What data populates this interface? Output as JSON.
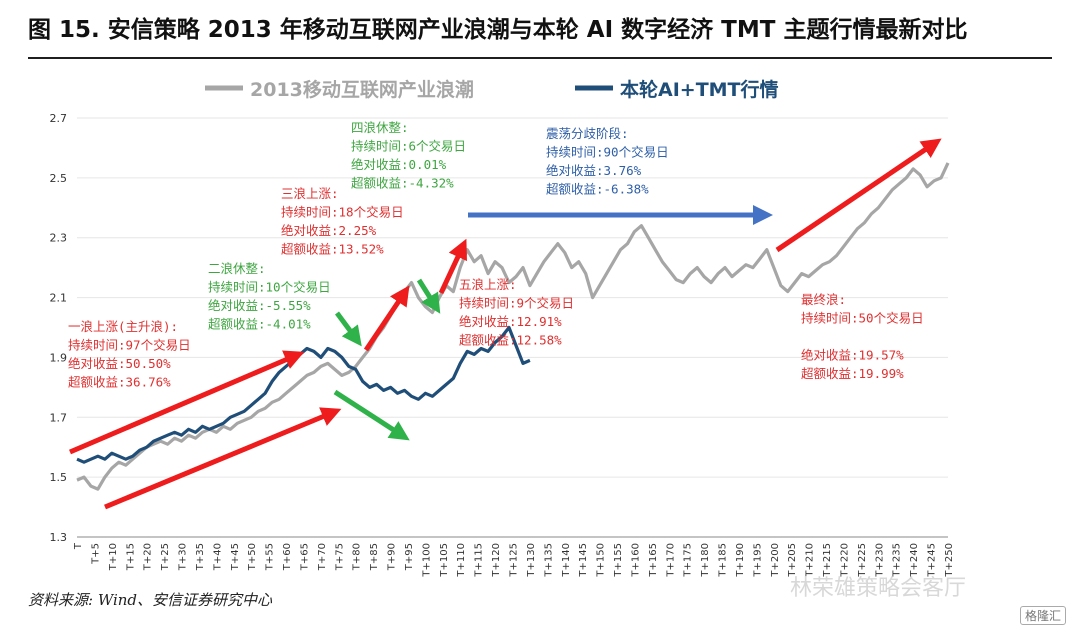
{
  "figure_title": "图 15. 安信策略 2013 年移动互联网产业浪潮与本轮 AI 数字经济 TMT 主题行情最新对比",
  "source_note": "资料来源: Wind、安信证券研究中心",
  "watermark": "林荣雄策略会客厅",
  "brand": "格隆汇",
  "colors": {
    "gray_series": "#a6a6a6",
    "blue_series": "#1f4e79",
    "green_text": "#3ea640",
    "red_text": "#e03030",
    "blue_text": "#2e5fa8",
    "red_arrow": "#ee1c1c",
    "green_arrow": "#2fb24a",
    "blue_arrow": "#4472c4"
  },
  "chart_data": {
    "type": "line",
    "legend": [
      "2013移动互联网产业浪潮",
      "本轮AI+TMT行情"
    ],
    "legend_position": "top",
    "ylim": [
      1.3,
      2.7
    ],
    "y_ticks": [
      "1.3",
      "1.5",
      "1.7",
      "1.9",
      "2.1",
      "2.3",
      "2.5",
      "2.7"
    ],
    "x_ticks": [
      "T",
      "T+5",
      "T+10",
      "T+15",
      "T+20",
      "T+25",
      "T+30",
      "T+35",
      "T+40",
      "T+45",
      "T+50",
      "T+55",
      "T+60",
      "T+65",
      "T+70",
      "T+75",
      "T+80",
      "T+85",
      "T+90",
      "T+95",
      "T+100",
      "T+105",
      "T+110",
      "T+115",
      "T+120",
      "T+125",
      "T+130",
      "T+135",
      "T+140",
      "T+145",
      "T+150",
      "T+155",
      "T+160",
      "T+165",
      "T+170",
      "T+175",
      "T+180",
      "T+185",
      "T+190",
      "T+195",
      "T+200",
      "T+205",
      "T+210",
      "T+215",
      "T+220",
      "T+225",
      "T+230",
      "T+235",
      "T+240",
      "T+245",
      "T+250"
    ],
    "grid": true,
    "series": [
      {
        "name": "2013移动互联网产业浪潮",
        "points": [
          [
            0,
            1.49
          ],
          [
            2,
            1.5
          ],
          [
            4,
            1.47
          ],
          [
            6,
            1.46
          ],
          [
            8,
            1.5
          ],
          [
            10,
            1.53
          ],
          [
            12,
            1.55
          ],
          [
            14,
            1.54
          ],
          [
            16,
            1.56
          ],
          [
            18,
            1.58
          ],
          [
            20,
            1.6
          ],
          [
            22,
            1.61
          ],
          [
            24,
            1.62
          ],
          [
            26,
            1.61
          ],
          [
            28,
            1.63
          ],
          [
            30,
            1.62
          ],
          [
            32,
            1.64
          ],
          [
            34,
            1.63
          ],
          [
            36,
            1.65
          ],
          [
            38,
            1.66
          ],
          [
            40,
            1.65
          ],
          [
            42,
            1.67
          ],
          [
            44,
            1.66
          ],
          [
            46,
            1.68
          ],
          [
            48,
            1.69
          ],
          [
            50,
            1.7
          ],
          [
            52,
            1.72
          ],
          [
            54,
            1.73
          ],
          [
            56,
            1.75
          ],
          [
            58,
            1.76
          ],
          [
            60,
            1.78
          ],
          [
            62,
            1.8
          ],
          [
            64,
            1.82
          ],
          [
            66,
            1.84
          ],
          [
            68,
            1.85
          ],
          [
            70,
            1.87
          ],
          [
            72,
            1.88
          ],
          [
            74,
            1.86
          ],
          [
            76,
            1.84
          ],
          [
            78,
            1.85
          ],
          [
            80,
            1.87
          ],
          [
            82,
            1.9
          ],
          [
            84,
            1.93
          ],
          [
            86,
            1.97
          ],
          [
            88,
            2.0
          ],
          [
            90,
            2.04
          ],
          [
            92,
            2.08
          ],
          [
            94,
            2.12
          ],
          [
            96,
            2.15
          ],
          [
            98,
            2.1
          ],
          [
            100,
            2.07
          ],
          [
            102,
            2.05
          ],
          [
            104,
            2.1
          ],
          [
            106,
            2.14
          ],
          [
            108,
            2.12
          ],
          [
            110,
            2.2
          ],
          [
            112,
            2.26
          ],
          [
            114,
            2.22
          ],
          [
            116,
            2.24
          ],
          [
            118,
            2.18
          ],
          [
            120,
            2.22
          ],
          [
            122,
            2.2
          ],
          [
            124,
            2.15
          ],
          [
            126,
            2.17
          ],
          [
            128,
            2.2
          ],
          [
            130,
            2.14
          ],
          [
            132,
            2.18
          ],
          [
            134,
            2.22
          ],
          [
            136,
            2.25
          ],
          [
            138,
            2.28
          ],
          [
            140,
            2.25
          ],
          [
            142,
            2.2
          ],
          [
            144,
            2.22
          ],
          [
            146,
            2.18
          ],
          [
            148,
            2.1
          ],
          [
            150,
            2.14
          ],
          [
            152,
            2.18
          ],
          [
            154,
            2.22
          ],
          [
            156,
            2.26
          ],
          [
            158,
            2.28
          ],
          [
            160,
            2.32
          ],
          [
            162,
            2.34
          ],
          [
            164,
            2.3
          ],
          [
            166,
            2.26
          ],
          [
            168,
            2.22
          ],
          [
            170,
            2.19
          ],
          [
            172,
            2.16
          ],
          [
            174,
            2.15
          ],
          [
            176,
            2.18
          ],
          [
            178,
            2.2
          ],
          [
            180,
            2.17
          ],
          [
            182,
            2.15
          ],
          [
            184,
            2.18
          ],
          [
            186,
            2.2
          ],
          [
            188,
            2.17
          ],
          [
            190,
            2.19
          ],
          [
            192,
            2.21
          ],
          [
            194,
            2.2
          ],
          [
            196,
            2.23
          ],
          [
            198,
            2.26
          ],
          [
            200,
            2.2
          ],
          [
            202,
            2.14
          ],
          [
            204,
            2.12
          ],
          [
            206,
            2.15
          ],
          [
            208,
            2.18
          ],
          [
            210,
            2.17
          ],
          [
            212,
            2.19
          ],
          [
            214,
            2.21
          ],
          [
            216,
            2.22
          ],
          [
            218,
            2.24
          ],
          [
            220,
            2.27
          ],
          [
            222,
            2.3
          ],
          [
            224,
            2.33
          ],
          [
            226,
            2.35
          ],
          [
            228,
            2.38
          ],
          [
            230,
            2.4
          ],
          [
            232,
            2.43
          ],
          [
            234,
            2.46
          ],
          [
            236,
            2.48
          ],
          [
            238,
            2.5
          ],
          [
            240,
            2.53
          ],
          [
            242,
            2.51
          ],
          [
            244,
            2.47
          ],
          [
            246,
            2.49
          ],
          [
            248,
            2.5
          ],
          [
            250,
            2.55
          ]
        ]
      },
      {
        "name": "本轮AI+TMT行情",
        "points": [
          [
            0,
            1.56
          ],
          [
            2,
            1.55
          ],
          [
            4,
            1.56
          ],
          [
            6,
            1.57
          ],
          [
            8,
            1.56
          ],
          [
            10,
            1.58
          ],
          [
            12,
            1.57
          ],
          [
            14,
            1.56
          ],
          [
            16,
            1.57
          ],
          [
            18,
            1.59
          ],
          [
            20,
            1.6
          ],
          [
            22,
            1.62
          ],
          [
            24,
            1.63
          ],
          [
            26,
            1.64
          ],
          [
            28,
            1.65
          ],
          [
            30,
            1.64
          ],
          [
            32,
            1.66
          ],
          [
            34,
            1.65
          ],
          [
            36,
            1.67
          ],
          [
            38,
            1.66
          ],
          [
            40,
            1.67
          ],
          [
            42,
            1.68
          ],
          [
            44,
            1.7
          ],
          [
            46,
            1.71
          ],
          [
            48,
            1.72
          ],
          [
            50,
            1.74
          ],
          [
            52,
            1.76
          ],
          [
            54,
            1.78
          ],
          [
            56,
            1.82
          ],
          [
            58,
            1.85
          ],
          [
            60,
            1.87
          ],
          [
            62,
            1.89
          ],
          [
            64,
            1.91
          ],
          [
            66,
            1.93
          ],
          [
            68,
            1.92
          ],
          [
            70,
            1.9
          ],
          [
            72,
            1.93
          ],
          [
            74,
            1.92
          ],
          [
            76,
            1.9
          ],
          [
            78,
            1.87
          ],
          [
            80,
            1.86
          ],
          [
            82,
            1.82
          ],
          [
            84,
            1.8
          ],
          [
            86,
            1.81
          ],
          [
            88,
            1.79
          ],
          [
            90,
            1.8
          ],
          [
            92,
            1.78
          ],
          [
            94,
            1.79
          ],
          [
            96,
            1.77
          ],
          [
            98,
            1.76
          ],
          [
            100,
            1.78
          ],
          [
            102,
            1.77
          ],
          [
            104,
            1.79
          ],
          [
            106,
            1.81
          ],
          [
            108,
            1.83
          ],
          [
            110,
            1.88
          ],
          [
            112,
            1.92
          ],
          [
            114,
            1.91
          ],
          [
            116,
            1.93
          ],
          [
            118,
            1.92
          ],
          [
            120,
            1.95
          ],
          [
            122,
            1.97
          ],
          [
            124,
            2.0
          ],
          [
            126,
            1.94
          ],
          [
            128,
            1.88
          ],
          [
            130,
            1.89
          ]
        ]
      }
    ],
    "annotations": [
      {
        "lines": [
          "一浪上涨(主升浪):",
          "持续时间:97个交易日",
          "绝对收益:50.50%",
          "超额收益:36.76%"
        ]
      },
      {
        "lines": [
          "二浪休整:",
          "持续时间:10个交易日",
          "绝对收益:-5.55%",
          "超额收益:-4.01%"
        ]
      },
      {
        "lines": [
          "三浪上涨:",
          "持续时间:18个交易日",
          "绝对收益:2.25%",
          "超额收益:13.52%"
        ]
      },
      {
        "lines": [
          "四浪休整:",
          "持续时间:6个交易日",
          "绝对收益:0.01%",
          "超额收益:-4.32%"
        ]
      },
      {
        "lines": [
          "五浪上涨:",
          "持续时间:9个交易日",
          "绝对收益:12.91%",
          "超额收益:12.58%"
        ]
      },
      {
        "lines": [
          "震荡分歧阶段:",
          "持续时间:90个交易日",
          "绝对收益:3.76%",
          "超额收益:-6.38%"
        ]
      },
      {
        "lines": [
          "最终浪:",
          "持续时间:50个交易日",
          "",
          "绝对收益:19.57%",
          "超额收益:19.99%"
        ]
      }
    ]
  }
}
